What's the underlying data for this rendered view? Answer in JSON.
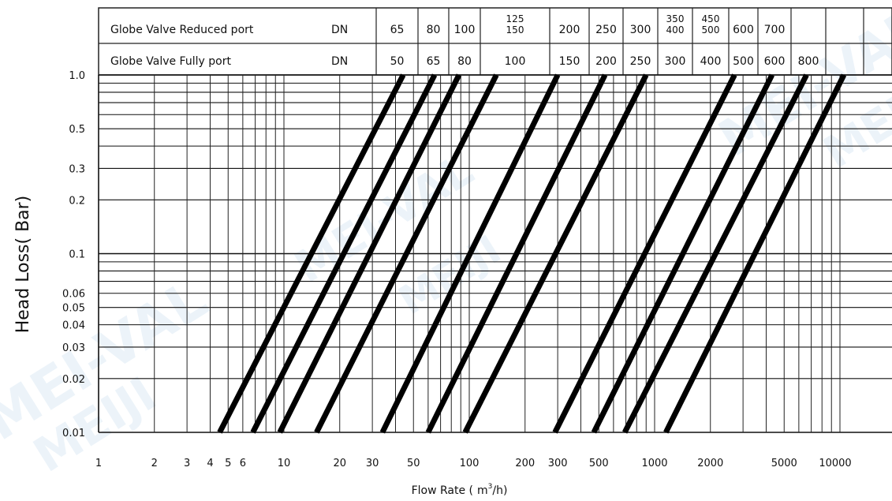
{
  "chart_data": {
    "type": "line",
    "x_scale": "log",
    "y_scale": "log",
    "xlabel": "Flow Rate (",
    "xlabel_unit": "m",
    "xlabel_sup": "3",
    "xlabel_end": "/h)",
    "ylabel": "Head Loss(  Bar)",
    "xlim": [
      1,
      20000
    ],
    "ylim": [
      0.01,
      1.0
    ],
    "x_ticks": [
      "1",
      "2",
      "3",
      "4",
      "5",
      "6",
      "10",
      "20",
      "30",
      "50",
      "100",
      "200",
      "300",
      "500",
      "1000",
      "2000",
      "5000",
      "10000"
    ],
    "x_tick_values": [
      1,
      2,
      3,
      4,
      5,
      6,
      10,
      20,
      30,
      50,
      100,
      200,
      300,
      500,
      1000,
      2000,
      5000,
      10000
    ],
    "y_ticks": [
      "1.0",
      "0.5",
      "0.3",
      "0.2",
      "0.1",
      "0.06",
      "0.05",
      "0.04",
      "0.03",
      "0.02",
      "0.01"
    ],
    "y_tick_values": [
      1.0,
      0.5,
      0.3,
      0.2,
      0.1,
      0.06,
      0.05,
      0.04,
      0.03,
      0.02,
      0.01
    ],
    "header_rows": [
      {
        "label": "Globe Valve Reduced port",
        "unit": "DN",
        "cells": [
          "65",
          "80",
          "100",
          "125\n150",
          "200",
          "250",
          "300",
          "350\n400",
          "450\n500",
          "600",
          "700",
          ""
        ]
      },
      {
        "label": "Globe Valve Fully port",
        "unit": "DN",
        "cells": [
          "50",
          "65",
          "80",
          "100",
          "150",
          "200",
          "250",
          "300",
          "400",
          "500",
          "600",
          "800"
        ]
      }
    ],
    "series": [
      {
        "x": [
          4.5,
          44
        ]
      },
      {
        "x": [
          6.8,
          65
        ]
      },
      {
        "x": [
          9.5,
          88
        ]
      },
      {
        "x": [
          15,
          140
        ]
      },
      {
        "x": [
          34,
          300
        ]
      },
      {
        "x": [
          60,
          540
        ]
      },
      {
        "x": [
          95,
          900
        ]
      },
      {
        "x": [
          290,
          2700
        ]
      },
      {
        "x": [
          470,
          4300
        ]
      },
      {
        "x": [
          690,
          6600
        ]
      },
      {
        "x": [
          1150,
          10500
        ]
      }
    ],
    "series_y": [
      0.01,
      1.0
    ],
    "watermarks": [
      "MEI-VAL",
      "MEIJI",
      "MEI-VAL",
      "MEIJI",
      "MEI-VAL",
      "MEIJI"
    ]
  }
}
